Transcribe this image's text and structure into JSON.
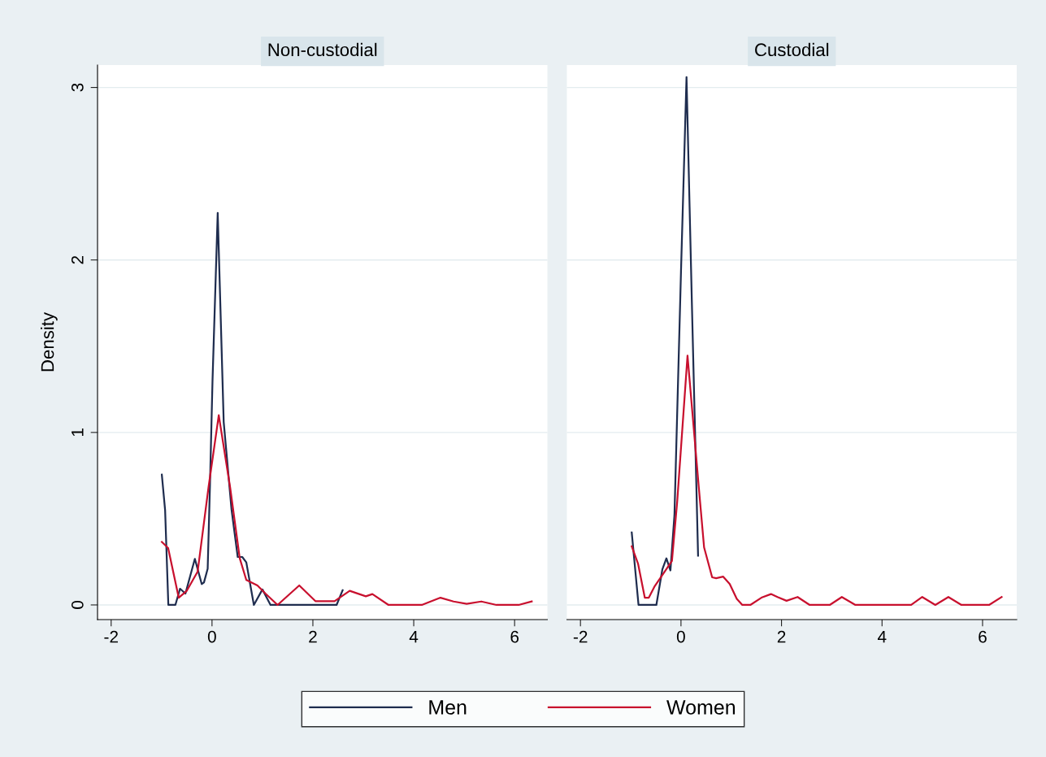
{
  "chart_data": [
    {
      "type": "line",
      "title": "Non-custodial",
      "ylabel": "Density",
      "xlim": [
        -2.27,
        6.65
      ],
      "ylim": [
        -0.085,
        3.13
      ],
      "xticks": [
        -2,
        0,
        2,
        4,
        6
      ],
      "yticks": [
        0,
        1,
        2,
        3
      ],
      "grid": "y",
      "legend": "bottom",
      "series": [
        {
          "name": "Men",
          "color": "#1f2d4f",
          "x": [
            -0.995,
            -0.93,
            -0.866,
            -0.726,
            -0.634,
            -0.527,
            -0.34,
            -0.204,
            -0.16,
            -0.086,
            -0.04,
            0.01,
            0.113,
            0.232,
            0.387,
            0.51,
            0.6,
            0.68,
            0.83,
            1.0,
            1.16,
            2.47,
            2.59
          ],
          "values": [
            0.755,
            0.55,
            0,
            0,
            0.094,
            0.066,
            0.267,
            0.121,
            0.13,
            0.21,
            0.7,
            1.3,
            2.273,
            1.06,
            0.553,
            0.278,
            0.278,
            0.247,
            0,
            0.09,
            0,
            0,
            0.085
          ]
        },
        {
          "name": "Women",
          "color": "#c8102e",
          "x": [
            -0.995,
            -0.87,
            -0.66,
            -0.5,
            -0.285,
            -0.07,
            0.134,
            0.36,
            0.55,
            0.68,
            0.9,
            1.06,
            1.3,
            1.73,
            2.05,
            2.43,
            2.73,
            3.05,
            3.18,
            3.5,
            4.16,
            4.53,
            4.79,
            5.05,
            5.34,
            5.64,
            6.08,
            6.34
          ],
          "values": [
            0.365,
            0.33,
            0.042,
            0.082,
            0.193,
            0.68,
            1.1,
            0.68,
            0.27,
            0.145,
            0.113,
            0.066,
            0,
            0.113,
            0.022,
            0.022,
            0.082,
            0.05,
            0.063,
            0,
            0,
            0.042,
            0.02,
            0.006,
            0.02,
            0,
            0,
            0.02
          ]
        }
      ]
    },
    {
      "type": "line",
      "title": "Custodial",
      "xlim": [
        -2.27,
        6.68
      ],
      "ylim": [
        -0.085,
        3.13
      ],
      "xticks": [
        -2,
        0,
        2,
        4,
        6
      ],
      "yticks": [
        0,
        1,
        2,
        3
      ],
      "grid": "y",
      "tick_labels": "x",
      "series": [
        {
          "color": "#1f2d4f",
          "x": [
            -0.98,
            -0.845,
            -0.49,
            -0.37,
            -0.29,
            -0.21,
            -0.13,
            0.0,
            0.11,
            0.22,
            0.34
          ],
          "values": [
            0.42,
            0,
            0,
            0.207,
            0.27,
            0.2,
            0.52,
            1.93,
            3.06,
            1.71,
            0.286
          ]
        },
        {
          "color": "#c8102e",
          "x": [
            -0.98,
            -0.855,
            -0.72,
            -0.64,
            -0.53,
            -0.345,
            -0.18,
            -0.075,
            0.13,
            0.355,
            0.46,
            0.62,
            0.7,
            0.84,
            0.97,
            1.11,
            1.22,
            1.38,
            1.6,
            1.79,
            1.92,
            2.1,
            2.32,
            2.56,
            2.96,
            3.2,
            3.47,
            4.58,
            4.8,
            5.06,
            5.32,
            5.58,
            6.13,
            6.38
          ],
          "values": [
            0.34,
            0.24,
            0.042,
            0.042,
            0.105,
            0.184,
            0.255,
            0.6,
            1.445,
            0.68,
            0.333,
            0.16,
            0.155,
            0.164,
            0.121,
            0.035,
            0,
            0,
            0.042,
            0.063,
            0.046,
            0.024,
            0.046,
            0,
            0,
            0.046,
            0,
            0,
            0.046,
            0,
            0.046,
            0,
            0,
            0.046
          ]
        }
      ]
    }
  ]
}
